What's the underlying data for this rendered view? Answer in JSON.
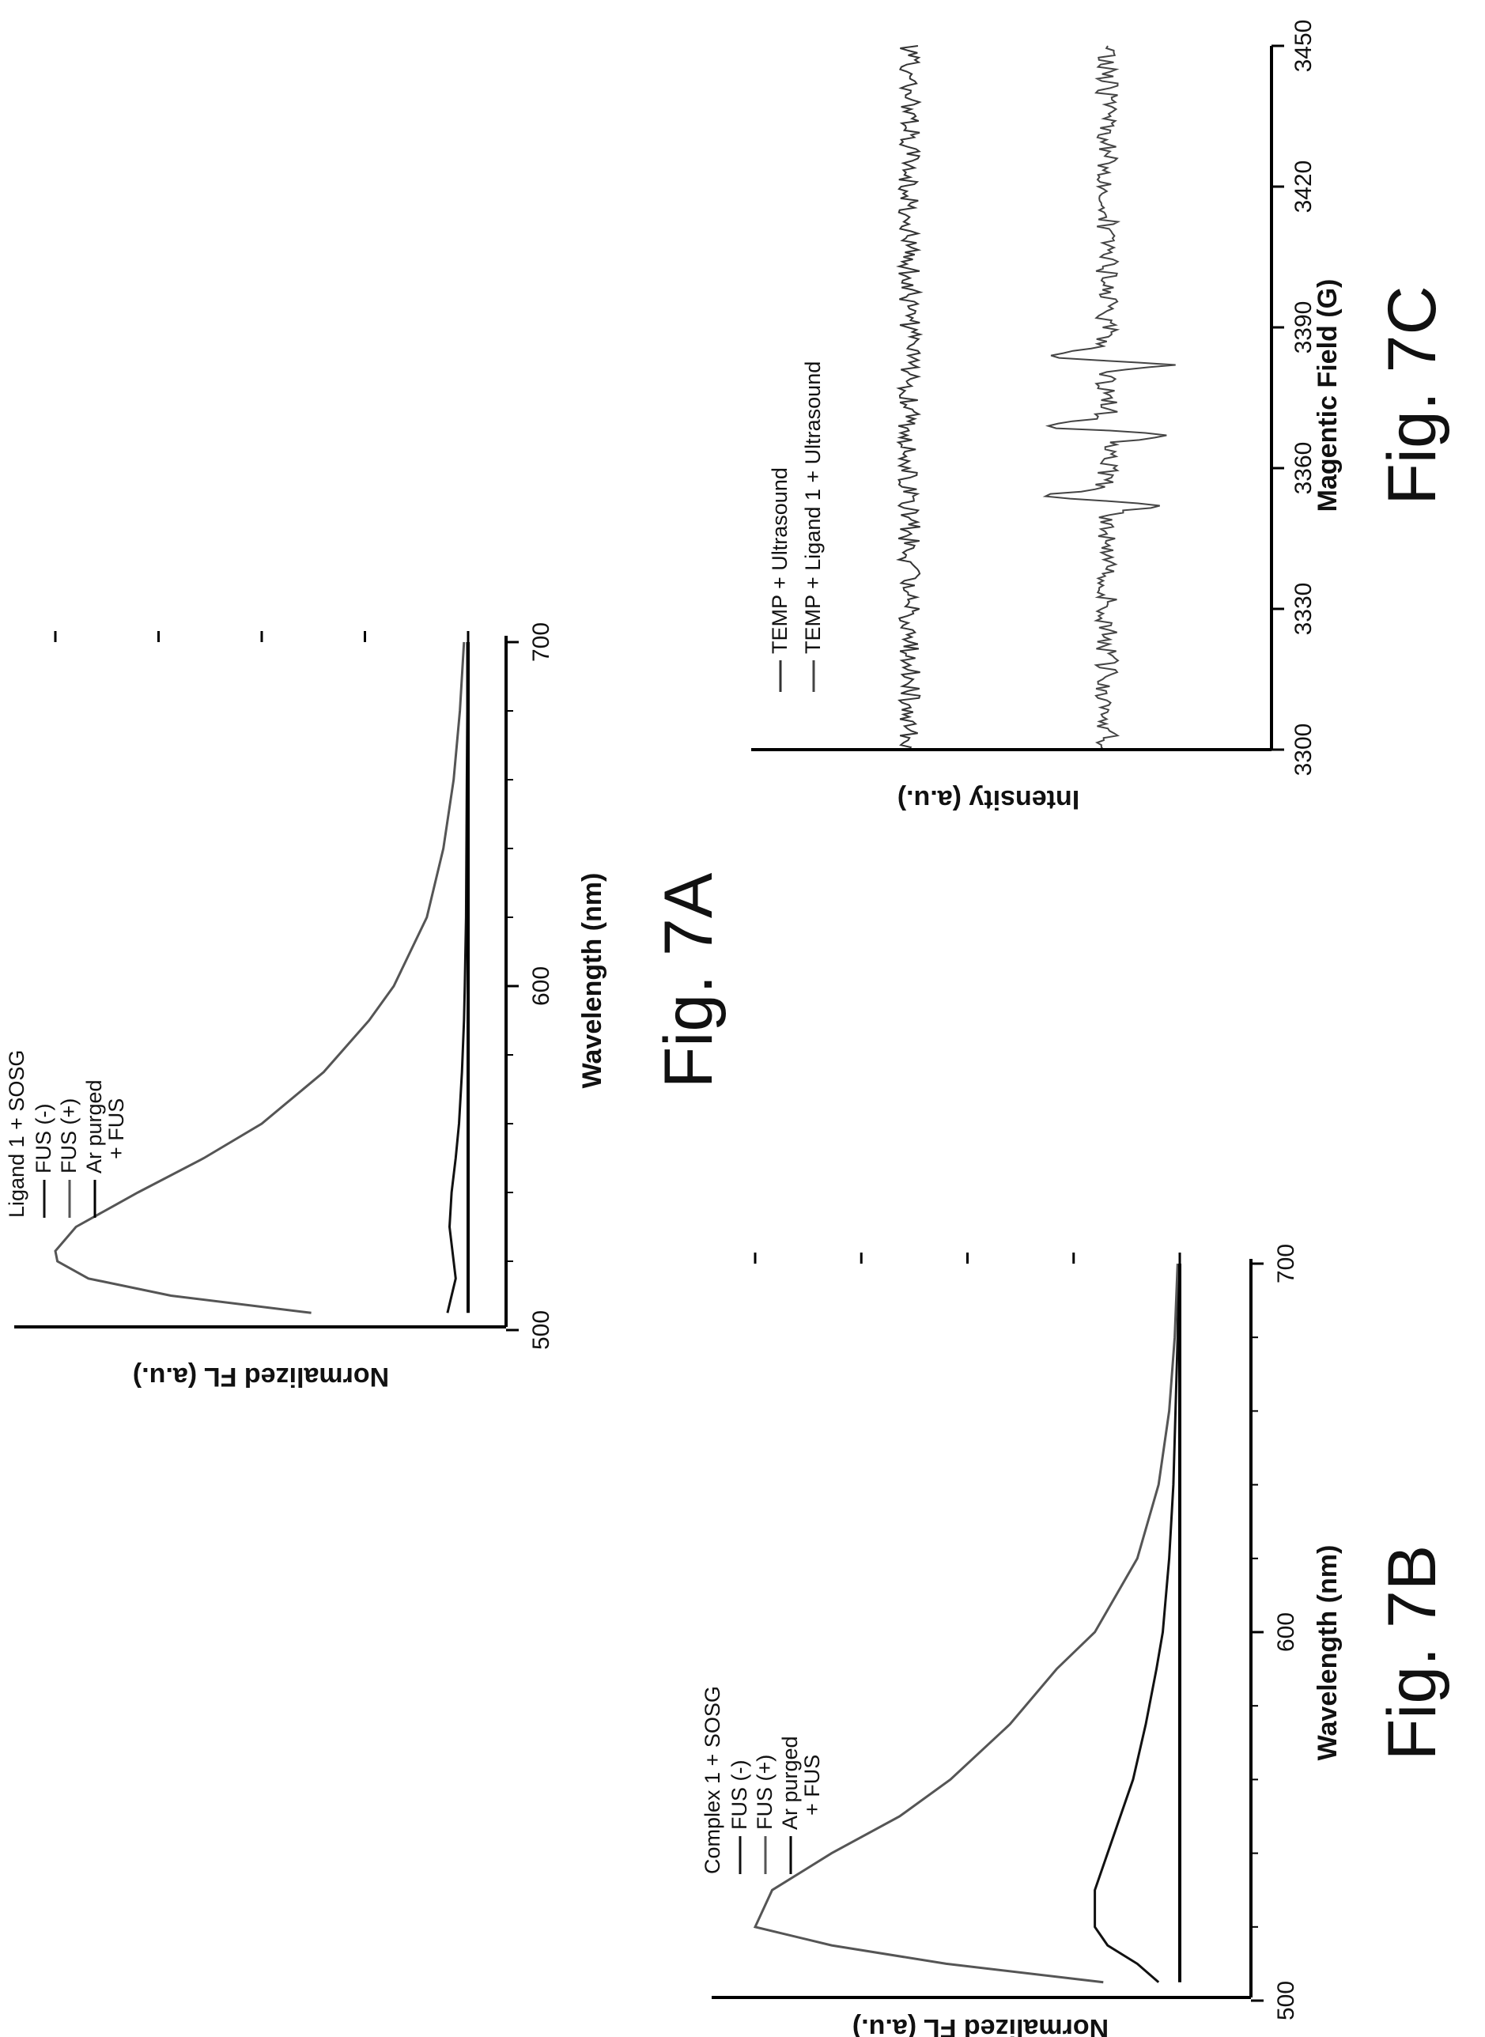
{
  "chart_data": [
    {
      "id": "7A",
      "type": "line",
      "figure_label": "Fig. 7A",
      "legend_title": "Ligand 1 + SOSG",
      "xlabel": "Wavelength (nm)",
      "ylabel": "Normalized FL (a.u.)",
      "xlim": [
        500,
        700
      ],
      "ylim": [
        0,
        1
      ],
      "xticks": [
        500,
        600,
        700
      ],
      "grid": false,
      "legend_placement": "top-left",
      "series": [
        {
          "name": "FUS (-)",
          "color": "#111111",
          "x": [
            505,
            510,
            515,
            520,
            530,
            540,
            550,
            560,
            575,
            590,
            600,
            620,
            640,
            660,
            680,
            700
          ],
          "y": [
            0.05,
            0.04,
            0.03,
            0.035,
            0.045,
            0.04,
            0.03,
            0.022,
            0.015,
            0.01,
            0.008,
            0.005,
            0.004,
            0.003,
            0.002,
            0.002
          ]
        },
        {
          "name": "FUS (+)",
          "color": "#555555",
          "x": [
            505,
            510,
            515,
            520,
            523,
            530,
            540,
            550,
            560,
            575,
            590,
            600,
            620,
            640,
            660,
            680,
            700
          ],
          "y": [
            0.38,
            0.72,
            0.92,
            0.995,
            1.0,
            0.95,
            0.8,
            0.64,
            0.5,
            0.35,
            0.24,
            0.18,
            0.1,
            0.06,
            0.035,
            0.02,
            0.01
          ]
        },
        {
          "name": "Ar purged\n+ FUS",
          "color": "#000000",
          "x": [
            505,
            550,
            600,
            650,
            700
          ],
          "y": [
            0.0,
            0.0,
            0.0,
            0.0,
            0.0
          ]
        }
      ]
    },
    {
      "id": "7B",
      "type": "line",
      "figure_label": "Fig. 7B",
      "legend_title": "Complex 1 + SOSG",
      "xlabel": "Wavelength (nm)",
      "ylabel": "Normalized FL (a.u.)",
      "xlim": [
        500,
        700
      ],
      "ylim": [
        0,
        1
      ],
      "xticks": [
        500,
        600,
        700
      ],
      "grid": false,
      "legend_placement": "top-left",
      "series": [
        {
          "name": "FUS (-)",
          "color": "#111111",
          "x": [
            505,
            510,
            515,
            520,
            530,
            540,
            550,
            560,
            575,
            590,
            600,
            620,
            640,
            660,
            680,
            700
          ],
          "y": [
            0.05,
            0.1,
            0.17,
            0.2,
            0.2,
            0.17,
            0.14,
            0.11,
            0.08,
            0.055,
            0.04,
            0.025,
            0.015,
            0.01,
            0.005,
            0.003
          ]
        },
        {
          "name": "FUS (+)",
          "color": "#555555",
          "x": [
            505,
            510,
            515,
            520,
            530,
            540,
            550,
            560,
            575,
            590,
            600,
            620,
            640,
            660,
            680,
            700
          ],
          "y": [
            0.18,
            0.55,
            0.82,
            1.0,
            0.96,
            0.82,
            0.66,
            0.54,
            0.4,
            0.29,
            0.2,
            0.1,
            0.05,
            0.025,
            0.012,
            0.005
          ]
        },
        {
          "name": "Ar purged\n+ FUS",
          "color": "#000000",
          "x": [
            505,
            550,
            600,
            650,
            700
          ],
          "y": [
            0.0,
            0.0,
            0.0,
            0.0,
            0.0
          ]
        }
      ]
    },
    {
      "id": "7C",
      "type": "line",
      "figure_label": "Fig. 7C",
      "xlabel": "Magentic Field (G)",
      "ylabel": "Intensity (a.u.)",
      "xlim": [
        3300,
        3450
      ],
      "xticks": [
        3300,
        3330,
        3360,
        3390,
        3420,
        3450
      ],
      "grid": false,
      "legend_placement": "top-left",
      "series": [
        {
          "name": "TEMP + Ultrasound",
          "color": "#333333",
          "noise": 0.08,
          "peaks": []
        },
        {
          "name": "TEMP + Ligand 1 + Ultrasound",
          "color": "#444444",
          "noise": 0.08,
          "peaks": [
            3353,
            3368,
            3383
          ]
        }
      ]
    }
  ]
}
